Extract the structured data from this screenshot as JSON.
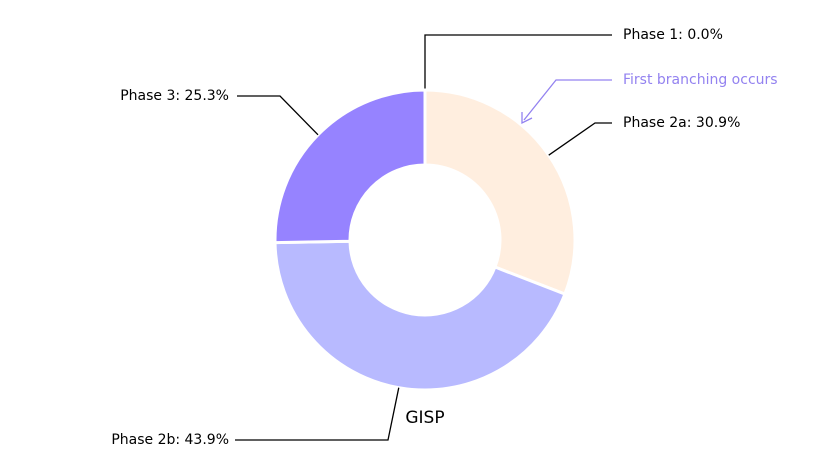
{
  "chart_data": {
    "type": "donut",
    "values": [
      0.0,
      30.9,
      43.9,
      25.3
    ],
    "value_labels": [
      "Phase 1: 0.0%",
      "Phase 2a: 30.9%",
      "Phase 2b: 43.9%",
      "Phase 3: 25.3%"
    ],
    "colors": [
      "#f4a460",
      "#ffeedf",
      "#b8baff",
      "#9683ff"
    ],
    "xlabel": "GISP",
    "annotation": "First branching occurs",
    "annotation_color": "#9382f0"
  }
}
